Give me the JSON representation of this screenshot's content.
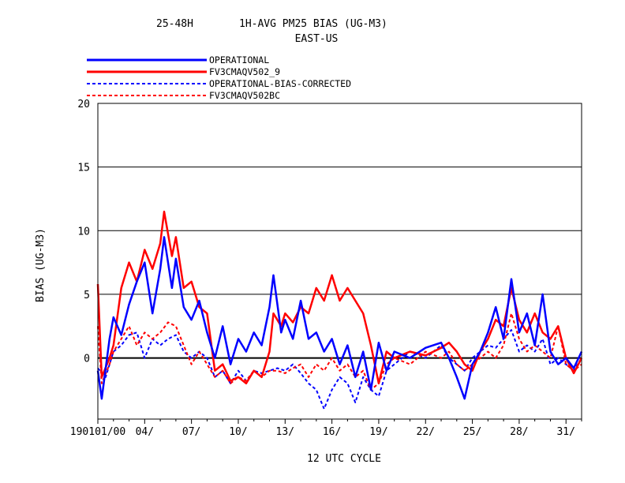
{
  "title": {
    "line1_left": "25-48H",
    "line1_right": "1H-AVG PM25 BIAS (UG-M3)",
    "line2": "EAST-US"
  },
  "chart_data": {
    "type": "line",
    "title": "25-48H 1H-AVG PM25 BIAS (UG-M3)",
    "subtitle": "EAST-US",
    "xlabel": "12 UTC CYCLE",
    "ylabel": "BIAS (UG-M3)",
    "ylim": [
      -4.8,
      20
    ],
    "xlim": [
      "2019-01-01",
      "2019-02-01"
    ],
    "yticks": [
      "20",
      "15",
      "10",
      "5",
      "0"
    ],
    "xticks": [
      "190101/00",
      "04/",
      "07/",
      "10/",
      "13/",
      "16/",
      "19/",
      "22/",
      "25/",
      "28/",
      "31/"
    ],
    "grid": "horizontal",
    "legend_position": "top-left",
    "colors": {
      "blue": "#0000ff",
      "red": "#ff0000",
      "zero_line": "#000000"
    },
    "series": [
      {
        "name": "OPERATIONAL",
        "color": "#0000ff",
        "style": "solid",
        "points": [
          [
            "2019-01-01",
            -1.0
          ],
          [
            "2019-01-01T06",
            -3.2
          ],
          [
            "2019-01-01T18",
            1.5
          ],
          [
            "2019-01-02",
            3.2
          ],
          [
            "2019-01-02T12",
            1.8
          ],
          [
            "2019-01-03",
            4.2
          ],
          [
            "2019-01-03T12",
            6.0
          ],
          [
            "2019-01-04",
            7.5
          ],
          [
            "2019-01-04T12",
            3.5
          ],
          [
            "2019-01-05",
            7.0
          ],
          [
            "2019-01-05T06",
            9.5
          ],
          [
            "2019-01-05T18",
            5.5
          ],
          [
            "2019-01-06",
            7.8
          ],
          [
            "2019-01-06T12",
            4.0
          ],
          [
            "2019-01-07",
            3.0
          ],
          [
            "2019-01-07T12",
            4.5
          ],
          [
            "2019-01-08",
            2.0
          ],
          [
            "2019-01-08T12",
            0.0
          ],
          [
            "2019-01-09",
            2.5
          ],
          [
            "2019-01-09T12",
            -0.5
          ],
          [
            "2019-01-10",
            1.5
          ],
          [
            "2019-01-10T12",
            0.5
          ],
          [
            "2019-01-11",
            2.0
          ],
          [
            "2019-01-11T12",
            1.0
          ],
          [
            "2019-01-12",
            4.0
          ],
          [
            "2019-01-12T06",
            6.5
          ],
          [
            "2019-01-12T18",
            2.0
          ],
          [
            "2019-01-13",
            3.0
          ],
          [
            "2019-01-13T12",
            1.5
          ],
          [
            "2019-01-14",
            4.5
          ],
          [
            "2019-01-14T12",
            1.5
          ],
          [
            "2019-01-15",
            2.0
          ],
          [
            "2019-01-15T12",
            0.5
          ],
          [
            "2019-01-16",
            1.5
          ],
          [
            "2019-01-16T12",
            -0.5
          ],
          [
            "2019-01-17",
            1.0
          ],
          [
            "2019-01-17T12",
            -1.5
          ],
          [
            "2019-01-18",
            0.5
          ],
          [
            "2019-01-18T12",
            -2.5
          ],
          [
            "2019-01-19",
            1.2
          ],
          [
            "2019-01-19T12",
            -1.0
          ],
          [
            "2019-01-20",
            0.5
          ],
          [
            "2019-01-21",
            0.0
          ],
          [
            "2019-01-22",
            0.8
          ],
          [
            "2019-01-23",
            1.2
          ],
          [
            "2019-01-23T12",
            0.0
          ],
          [
            "2019-01-24",
            -1.5
          ],
          [
            "2019-01-24T12",
            -3.2
          ],
          [
            "2019-01-25",
            -0.5
          ],
          [
            "2019-01-25T12",
            0.5
          ],
          [
            "2019-01-26",
            2.0
          ],
          [
            "2019-01-26T12",
            4.0
          ],
          [
            "2019-01-27",
            1.5
          ],
          [
            "2019-01-27T12",
            6.2
          ],
          [
            "2019-01-28",
            2.0
          ],
          [
            "2019-01-28T12",
            3.5
          ],
          [
            "2019-01-29",
            1.0
          ],
          [
            "2019-01-29T12",
            5.0
          ],
          [
            "2019-01-30",
            0.5
          ],
          [
            "2019-01-30T12",
            -0.5
          ],
          [
            "2019-01-31",
            0.0
          ],
          [
            "2019-01-31T12",
            -0.8
          ],
          [
            "2019-02-01",
            0.5
          ]
        ]
      },
      {
        "name": "FV3CMAQV502_9",
        "color": "#ff0000",
        "style": "solid",
        "points": [
          [
            "2019-01-01",
            5.8
          ],
          [
            "2019-01-01T06",
            -1.5
          ],
          [
            "2019-01-01T18",
            0.0
          ],
          [
            "2019-01-02",
            1.0
          ],
          [
            "2019-01-02T12",
            5.5
          ],
          [
            "2019-01-03",
            7.5
          ],
          [
            "2019-01-03T12",
            6.0
          ],
          [
            "2019-01-04",
            8.5
          ],
          [
            "2019-01-04T12",
            7.0
          ],
          [
            "2019-01-05",
            9.0
          ],
          [
            "2019-01-05T06",
            11.5
          ],
          [
            "2019-01-05T18",
            8.0
          ],
          [
            "2019-01-06",
            9.5
          ],
          [
            "2019-01-06T12",
            5.5
          ],
          [
            "2019-01-07",
            6.0
          ],
          [
            "2019-01-07T12",
            4.0
          ],
          [
            "2019-01-08",
            3.5
          ],
          [
            "2019-01-08T12",
            -1.0
          ],
          [
            "2019-01-09",
            -0.5
          ],
          [
            "2019-01-09T12",
            -1.8
          ],
          [
            "2019-01-10",
            -1.5
          ],
          [
            "2019-01-10T12",
            -2.0
          ],
          [
            "2019-01-11",
            -1.0
          ],
          [
            "2019-01-11T12",
            -1.5
          ],
          [
            "2019-01-12",
            0.5
          ],
          [
            "2019-01-12T06",
            3.5
          ],
          [
            "2019-01-12T18",
            2.5
          ],
          [
            "2019-01-13",
            3.5
          ],
          [
            "2019-01-13T12",
            2.8
          ],
          [
            "2019-01-14",
            4.0
          ],
          [
            "2019-01-14T12",
            3.5
          ],
          [
            "2019-01-15",
            5.5
          ],
          [
            "2019-01-15T12",
            4.5
          ],
          [
            "2019-01-16",
            6.5
          ],
          [
            "2019-01-16T12",
            4.5
          ],
          [
            "2019-01-17",
            5.5
          ],
          [
            "2019-01-17T12",
            4.5
          ],
          [
            "2019-01-18",
            3.5
          ],
          [
            "2019-01-18T12",
            1.0
          ],
          [
            "2019-01-19",
            -2.0
          ],
          [
            "2019-01-19T12",
            0.5
          ],
          [
            "2019-01-20",
            0.0
          ],
          [
            "2019-01-21",
            0.5
          ],
          [
            "2019-01-22",
            0.2
          ],
          [
            "2019-01-23",
            0.8
          ],
          [
            "2019-01-23T12",
            1.2
          ],
          [
            "2019-01-24",
            0.5
          ],
          [
            "2019-01-24T12",
            -0.5
          ],
          [
            "2019-01-25",
            -1.0
          ],
          [
            "2019-01-25T12",
            0.5
          ],
          [
            "2019-01-26",
            1.5
          ],
          [
            "2019-01-26T12",
            3.0
          ],
          [
            "2019-01-27",
            2.5
          ],
          [
            "2019-01-27T12",
            5.5
          ],
          [
            "2019-01-28",
            3.0
          ],
          [
            "2019-01-28T12",
            2.0
          ],
          [
            "2019-01-29",
            3.5
          ],
          [
            "2019-01-29T12",
            2.0
          ],
          [
            "2019-01-30",
            1.5
          ],
          [
            "2019-01-30T12",
            2.5
          ],
          [
            "2019-01-31",
            0.0
          ],
          [
            "2019-01-31T12",
            -1.2
          ],
          [
            "2019-02-01",
            0.0
          ]
        ]
      },
      {
        "name": "OPERATIONAL-BIAS-CORRECTED",
        "color": "#0000ff",
        "style": "dashed",
        "points": [
          [
            "2019-01-01",
            -0.8
          ],
          [
            "2019-01-01T12",
            -1.5
          ],
          [
            "2019-01-02",
            0.5
          ],
          [
            "2019-01-02T12",
            1.0
          ],
          [
            "2019-01-03",
            1.8
          ],
          [
            "2019-01-03T12",
            2.0
          ],
          [
            "2019-01-04",
            0.0
          ],
          [
            "2019-01-04T12",
            1.5
          ],
          [
            "2019-01-05",
            1.0
          ],
          [
            "2019-01-05T12",
            1.5
          ],
          [
            "2019-01-06",
            1.8
          ],
          [
            "2019-01-06T12",
            0.5
          ],
          [
            "2019-01-07",
            0.0
          ],
          [
            "2019-01-07T12",
            0.5
          ],
          [
            "2019-01-08",
            0.0
          ],
          [
            "2019-01-08T12",
            -1.5
          ],
          [
            "2019-01-09",
            -1.0
          ],
          [
            "2019-01-09T12",
            -2.0
          ],
          [
            "2019-01-10",
            -1.0
          ],
          [
            "2019-01-10T12",
            -1.8
          ],
          [
            "2019-01-11",
            -1.0
          ],
          [
            "2019-01-11T12",
            -1.2
          ],
          [
            "2019-01-12",
            -1.0
          ],
          [
            "2019-01-12T12",
            -0.8
          ],
          [
            "2019-01-13",
            -1.0
          ],
          [
            "2019-01-13T12",
            -0.5
          ],
          [
            "2019-01-14",
            -1.2
          ],
          [
            "2019-01-14T12",
            -2.0
          ],
          [
            "2019-01-15",
            -2.5
          ],
          [
            "2019-01-15T12",
            -4.0
          ],
          [
            "2019-01-16",
            -2.5
          ],
          [
            "2019-01-16T12",
            -1.5
          ],
          [
            "2019-01-17",
            -2.0
          ],
          [
            "2019-01-17T12",
            -3.5
          ],
          [
            "2019-01-18",
            -1.5
          ],
          [
            "2019-01-18T12",
            -2.5
          ],
          [
            "2019-01-19",
            -3.0
          ],
          [
            "2019-01-19T12",
            -1.0
          ],
          [
            "2019-01-20",
            -0.5
          ],
          [
            "2019-01-21",
            0.5
          ],
          [
            "2019-01-22",
            0.0
          ],
          [
            "2019-01-23",
            1.0
          ],
          [
            "2019-01-23T12",
            0.0
          ],
          [
            "2019-01-24",
            -0.5
          ],
          [
            "2019-01-24T12",
            -1.0
          ],
          [
            "2019-01-25",
            0.0
          ],
          [
            "2019-01-25T12",
            0.5
          ],
          [
            "2019-01-26",
            1.0
          ],
          [
            "2019-01-26T12",
            0.8
          ],
          [
            "2019-01-27",
            1.5
          ],
          [
            "2019-01-27T12",
            2.2
          ],
          [
            "2019-01-28",
            0.5
          ],
          [
            "2019-01-28T12",
            1.0
          ],
          [
            "2019-01-29",
            0.5
          ],
          [
            "2019-01-29T12",
            1.5
          ],
          [
            "2019-01-30",
            -0.5
          ],
          [
            "2019-01-30T12",
            0.0
          ],
          [
            "2019-01-31",
            -0.5
          ],
          [
            "2019-01-31T12",
            -1.0
          ],
          [
            "2019-02-01",
            0.0
          ]
        ]
      },
      {
        "name": "FV3CMAQV502BC",
        "color": "#ff0000",
        "style": "dashed",
        "points": [
          [
            "2019-01-01",
            2.5
          ],
          [
            "2019-01-01T06",
            -2.0
          ],
          [
            "2019-01-01T18",
            -0.5
          ],
          [
            "2019-01-02",
            0.5
          ],
          [
            "2019-01-02T12",
            1.5
          ],
          [
            "2019-01-03",
            2.5
          ],
          [
            "2019-01-03T12",
            1.0
          ],
          [
            "2019-01-04",
            2.0
          ],
          [
            "2019-01-04T12",
            1.5
          ],
          [
            "2019-01-05",
            2.0
          ],
          [
            "2019-01-05T12",
            2.8
          ],
          [
            "2019-01-06",
            2.5
          ],
          [
            "2019-01-06T12",
            1.0
          ],
          [
            "2019-01-07",
            -0.5
          ],
          [
            "2019-01-07T12",
            0.5
          ],
          [
            "2019-01-08",
            -0.5
          ],
          [
            "2019-01-08T12",
            -1.5
          ],
          [
            "2019-01-09",
            -1.0
          ],
          [
            "2019-01-09T12",
            -2.0
          ],
          [
            "2019-01-10",
            -1.5
          ],
          [
            "2019-01-10T12",
            -1.8
          ],
          [
            "2019-01-11",
            -1.0
          ],
          [
            "2019-01-11T12",
            -1.5
          ],
          [
            "2019-01-12",
            -1.0
          ],
          [
            "2019-01-12T12",
            -1.0
          ],
          [
            "2019-01-13",
            -1.2
          ],
          [
            "2019-01-13T12",
            -0.8
          ],
          [
            "2019-01-14",
            -0.5
          ],
          [
            "2019-01-14T12",
            -1.5
          ],
          [
            "2019-01-15",
            -0.5
          ],
          [
            "2019-01-15T12",
            -1.0
          ],
          [
            "2019-01-16",
            0.0
          ],
          [
            "2019-01-16T12",
            -1.0
          ],
          [
            "2019-01-17",
            -0.5
          ],
          [
            "2019-01-17T12",
            -1.5
          ],
          [
            "2019-01-18",
            -1.0
          ],
          [
            "2019-01-18T12",
            -2.5
          ],
          [
            "2019-01-19",
            -2.0
          ],
          [
            "2019-01-19T12",
            -0.5
          ],
          [
            "2019-01-20",
            0.0
          ],
          [
            "2019-01-21",
            -0.5
          ],
          [
            "2019-01-22",
            0.5
          ],
          [
            "2019-01-23",
            0.0
          ],
          [
            "2019-01-23T12",
            0.5
          ],
          [
            "2019-01-24",
            -0.5
          ],
          [
            "2019-01-24T12",
            -1.0
          ],
          [
            "2019-01-25",
            -0.5
          ],
          [
            "2019-01-25T12",
            0.0
          ],
          [
            "2019-01-26",
            0.5
          ],
          [
            "2019-01-26T12",
            0.0
          ],
          [
            "2019-01-27",
            1.0
          ],
          [
            "2019-01-27T12",
            3.5
          ],
          [
            "2019-01-28",
            1.5
          ],
          [
            "2019-01-28T12",
            0.5
          ],
          [
            "2019-01-29",
            1.0
          ],
          [
            "2019-01-29T12",
            0.5
          ],
          [
            "2019-01-30",
            0.0
          ],
          [
            "2019-01-30T12",
            2.5
          ],
          [
            "2019-01-31",
            -0.5
          ],
          [
            "2019-01-31T12",
            -1.0
          ],
          [
            "2019-02-01",
            -0.5
          ]
        ]
      }
    ]
  }
}
